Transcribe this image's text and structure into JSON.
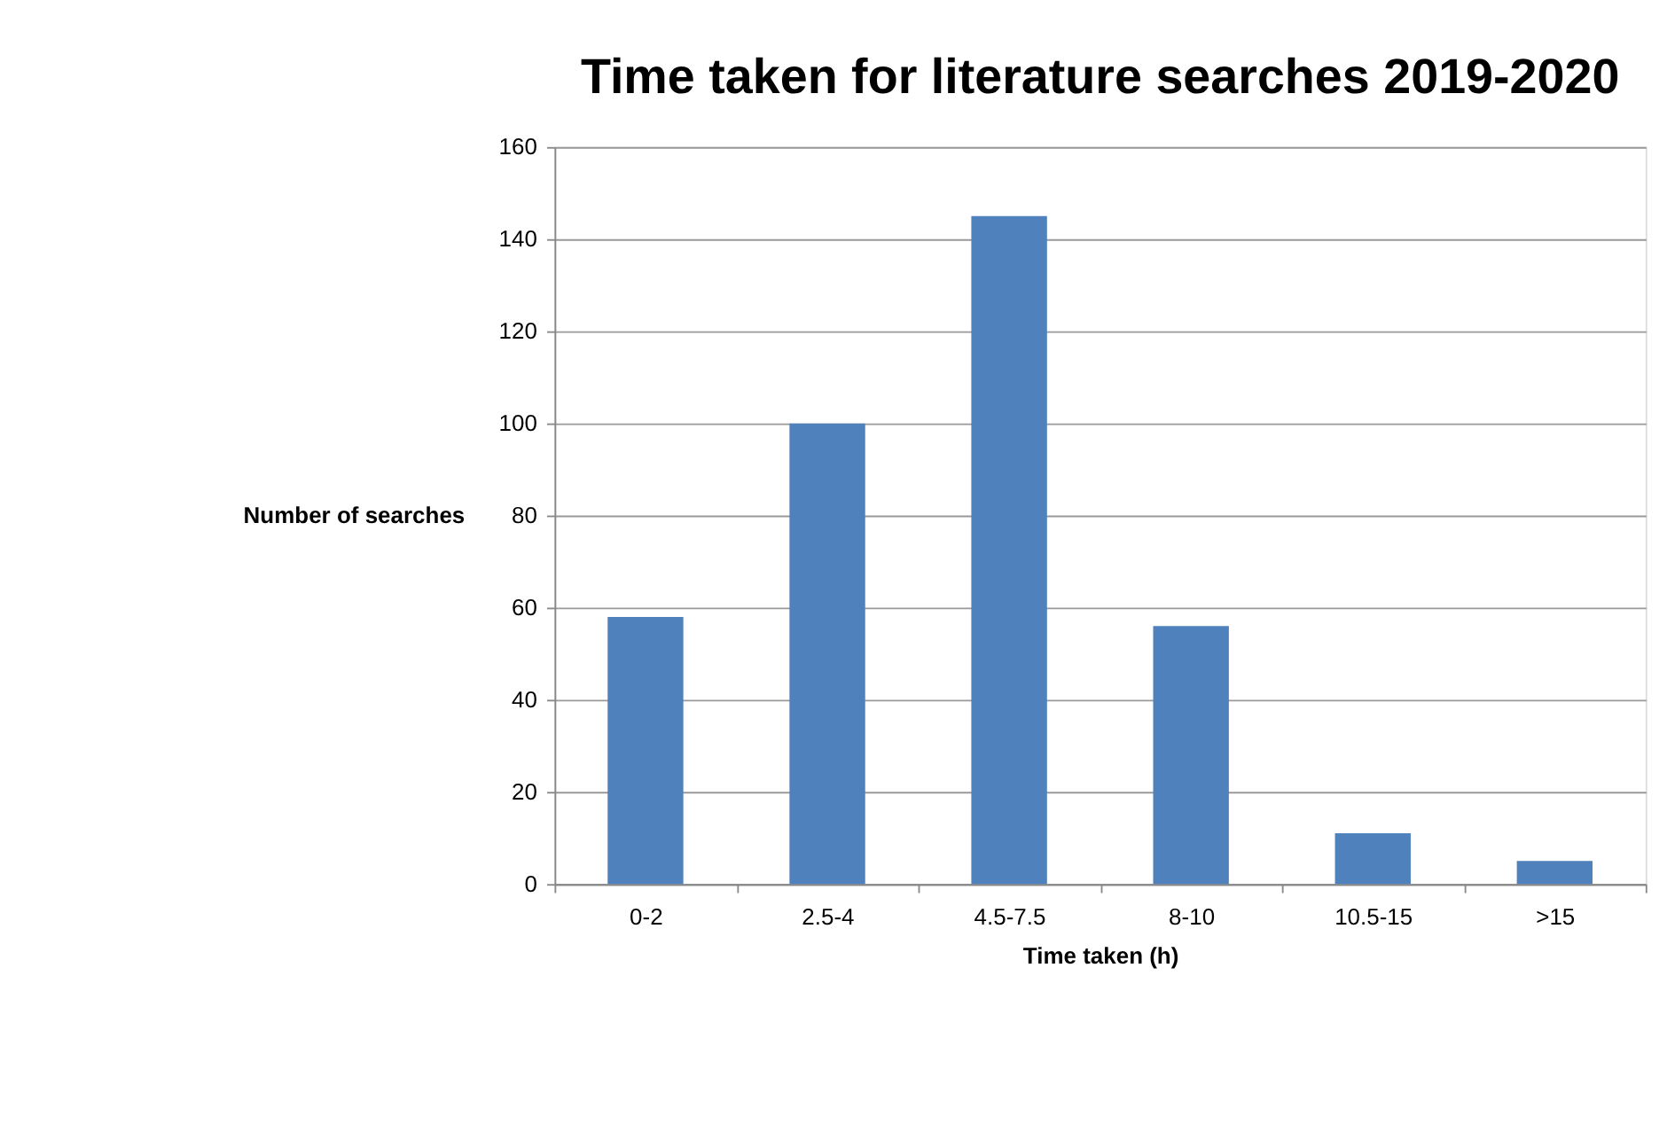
{
  "chart_data": {
    "type": "bar",
    "title": "Time taken for literature searches 2019-2020",
    "xlabel": "Time taken (h)",
    "ylabel": "Number of searches",
    "categories": [
      "0-2",
      "2.5-4",
      "4.5-7.5",
      "8-10",
      "10.5-15",
      ">15"
    ],
    "values": [
      58,
      100,
      145,
      56,
      11,
      5
    ],
    "color": "#4f81bd",
    "ylim": [
      0,
      160
    ],
    "yticks": [
      0,
      20,
      40,
      60,
      80,
      100,
      120,
      140,
      160
    ],
    "grid": "y"
  }
}
